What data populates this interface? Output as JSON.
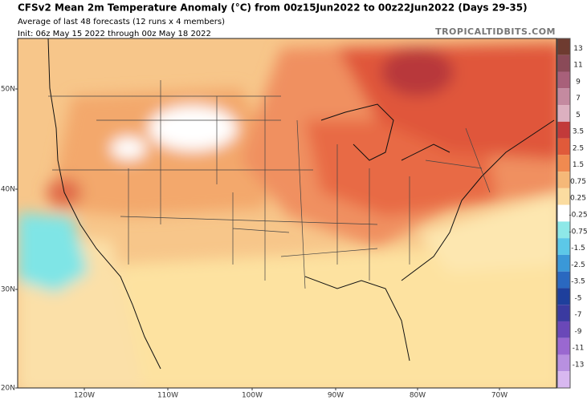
{
  "header": {
    "title": "CFSv2 Mean 2m Temperature Anomaly (°C) from 00z15Jun2022 to 00z22Jun2022 (Days 29-35)",
    "subtitle": "Average of last 48 forecasts (12 runs x 4 members)",
    "init": "Init: 06z May 15 2022 through 00z May 18 2022",
    "watermark": "TROPICALTIDBITS.COM"
  },
  "axes": {
    "latitudes": [
      "50N",
      "40N",
      "30N",
      "20N"
    ],
    "longitudes": [
      "120W",
      "110W",
      "100W",
      "90W",
      "80W",
      "70W"
    ]
  },
  "colorbar": {
    "labels": [
      "13",
      "11",
      "9",
      "7",
      "5",
      "3.5",
      "2.5",
      "1.5",
      "0.75",
      "0.25",
      "-0.25",
      "-0.75",
      "-1.5",
      "-2.5",
      "-3.5",
      "-5",
      "-7",
      "-9",
      "-11",
      "-13"
    ],
    "colors": [
      "#6e3b30",
      "#8a4a58",
      "#a8607a",
      "#c48aa0",
      "#dcb0c0",
      "#c23a3a",
      "#e05a3a",
      "#f08a50",
      "#f5b878",
      "#fbdca0",
      "#ffffff",
      "#8ee8e8",
      "#5cc8e8",
      "#3a98d8",
      "#2a68c0",
      "#1e3f9c",
      "#3a3aa0",
      "#6a48b8",
      "#9a68d0",
      "#b890e0",
      "#d8b8f0"
    ]
  }
}
